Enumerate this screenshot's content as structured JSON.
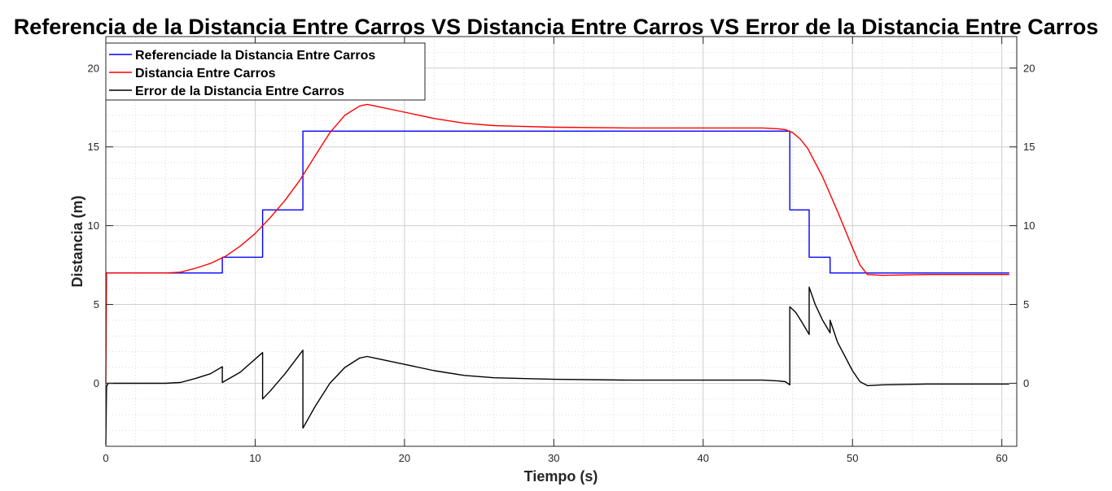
{
  "chart_data": {
    "type": "line",
    "title": "Referencia de la Distancia Entre Carros VS Distancia Entre Carros VS Error de la Distancia Entre Carros",
    "xlabel": "Tiempo (s)",
    "ylabel": "Distancia (m)",
    "xlim": [
      0,
      61
    ],
    "ylim": [
      -4,
      22
    ],
    "xticks": [
      0,
      10,
      20,
      30,
      40,
      50,
      60
    ],
    "yticks": [
      0,
      5,
      10,
      15,
      20
    ],
    "grid": true,
    "minor_grid": true,
    "legend_position": "top-left",
    "series": [
      {
        "name": "Referenciade la Distancia Entre Carros",
        "color": "#0000ff",
        "step": true,
        "x": [
          0,
          7.8,
          7.8,
          10.5,
          10.5,
          13.2,
          13.2,
          45.8,
          45.8,
          47.1,
          47.1,
          48.5,
          48.5,
          60.5
        ],
        "y": [
          7,
          7,
          8,
          8,
          11,
          11,
          16,
          16,
          11,
          11,
          8,
          8,
          7,
          7
        ]
      },
      {
        "name": "Distancia Entre Carros",
        "color": "#ff0000",
        "x": [
          0,
          0.05,
          2,
          4,
          5,
          6,
          7,
          8,
          9,
          10,
          11,
          12,
          13,
          14,
          15,
          16,
          17,
          17.5,
          18,
          20,
          22,
          24,
          26,
          30,
          35,
          40,
          44,
          45,
          45.5,
          46,
          46.5,
          47,
          48,
          49,
          50,
          50.5,
          51,
          52,
          55,
          60.5
        ],
        "y": [
          0,
          7,
          7,
          7,
          7.05,
          7.3,
          7.6,
          8.05,
          8.7,
          9.5,
          10.5,
          11.6,
          12.9,
          14.4,
          15.9,
          17.0,
          17.6,
          17.7,
          17.6,
          17.2,
          16.8,
          16.5,
          16.35,
          16.25,
          16.2,
          16.2,
          16.2,
          16.15,
          16.1,
          15.9,
          15.5,
          14.9,
          13.1,
          10.9,
          8.6,
          7.5,
          6.9,
          6.85,
          6.9,
          6.9
        ]
      },
      {
        "name": "Error de la Distancia Entre Carros",
        "color": "#000000",
        "x": [
          0,
          0.05,
          0.15,
          2,
          4,
          5,
          6,
          7,
          7.8,
          7.8,
          9,
          10.5,
          10.5,
          11,
          12,
          13.2,
          13.2,
          14,
          15,
          16,
          17,
          17.5,
          18,
          20,
          22,
          24,
          26,
          30,
          35,
          40,
          44,
          45,
          45.5,
          45.8,
          45.8,
          46.2,
          46.6,
          47.1,
          47.1,
          47.5,
          48,
          48.5,
          48.5,
          49,
          50,
          50.5,
          51,
          52,
          55,
          60.5
        ],
        "y": [
          -3.9,
          -0.2,
          0,
          0,
          0,
          0.05,
          0.3,
          0.6,
          1.05,
          0.05,
          0.7,
          1.95,
          -1.0,
          -0.5,
          0.6,
          2.1,
          -2.85,
          -1.5,
          0,
          1.0,
          1.6,
          1.7,
          1.6,
          1.2,
          0.8,
          0.5,
          0.35,
          0.25,
          0.2,
          0.2,
          0.2,
          0.15,
          0.1,
          -0.1,
          4.85,
          4.5,
          3.9,
          3.1,
          6.1,
          5.0,
          4.0,
          3.2,
          4.0,
          2.6,
          0.8,
          0.1,
          -0.15,
          -0.1,
          -0.05,
          -0.05
        ]
      }
    ]
  }
}
